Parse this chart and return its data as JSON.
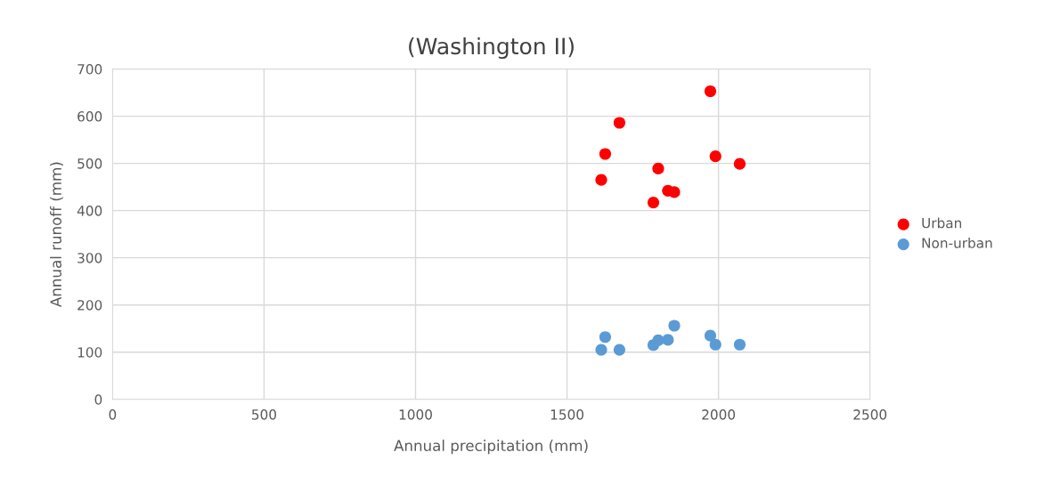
{
  "chart_data": {
    "type": "scatter",
    "title": "(Washington II)",
    "xlabel": "Annual precipitation (mm)",
    "ylabel": "Annual runoff (mm)",
    "xlim": [
      0,
      2500
    ],
    "xticks": [
      0,
      500,
      1000,
      1500,
      2000,
      2500
    ],
    "ylim": [
      0,
      700
    ],
    "yticks": [
      0,
      100,
      200,
      300,
      400,
      500,
      600,
      700
    ],
    "grid": true,
    "legend": "right",
    "marker": "circle",
    "series": [
      {
        "name": "Urban",
        "color": "#ff0000",
        "x": [
          1973,
          1673,
          1626,
          1613,
          1801,
          1785,
          1833,
          1854,
          1990,
          2070
        ],
        "values": [
          653,
          586,
          520,
          465,
          489,
          417,
          442,
          439,
          515,
          499
        ]
      },
      {
        "name": "Non-urban",
        "color": "#5b9bd5",
        "x": [
          1613,
          1626,
          1673,
          1785,
          1801,
          1833,
          1854,
          1973,
          1990,
          2070
        ],
        "values": [
          105,
          132,
          105,
          115,
          125,
          126,
          156,
          135,
          116,
          116
        ]
      }
    ]
  }
}
